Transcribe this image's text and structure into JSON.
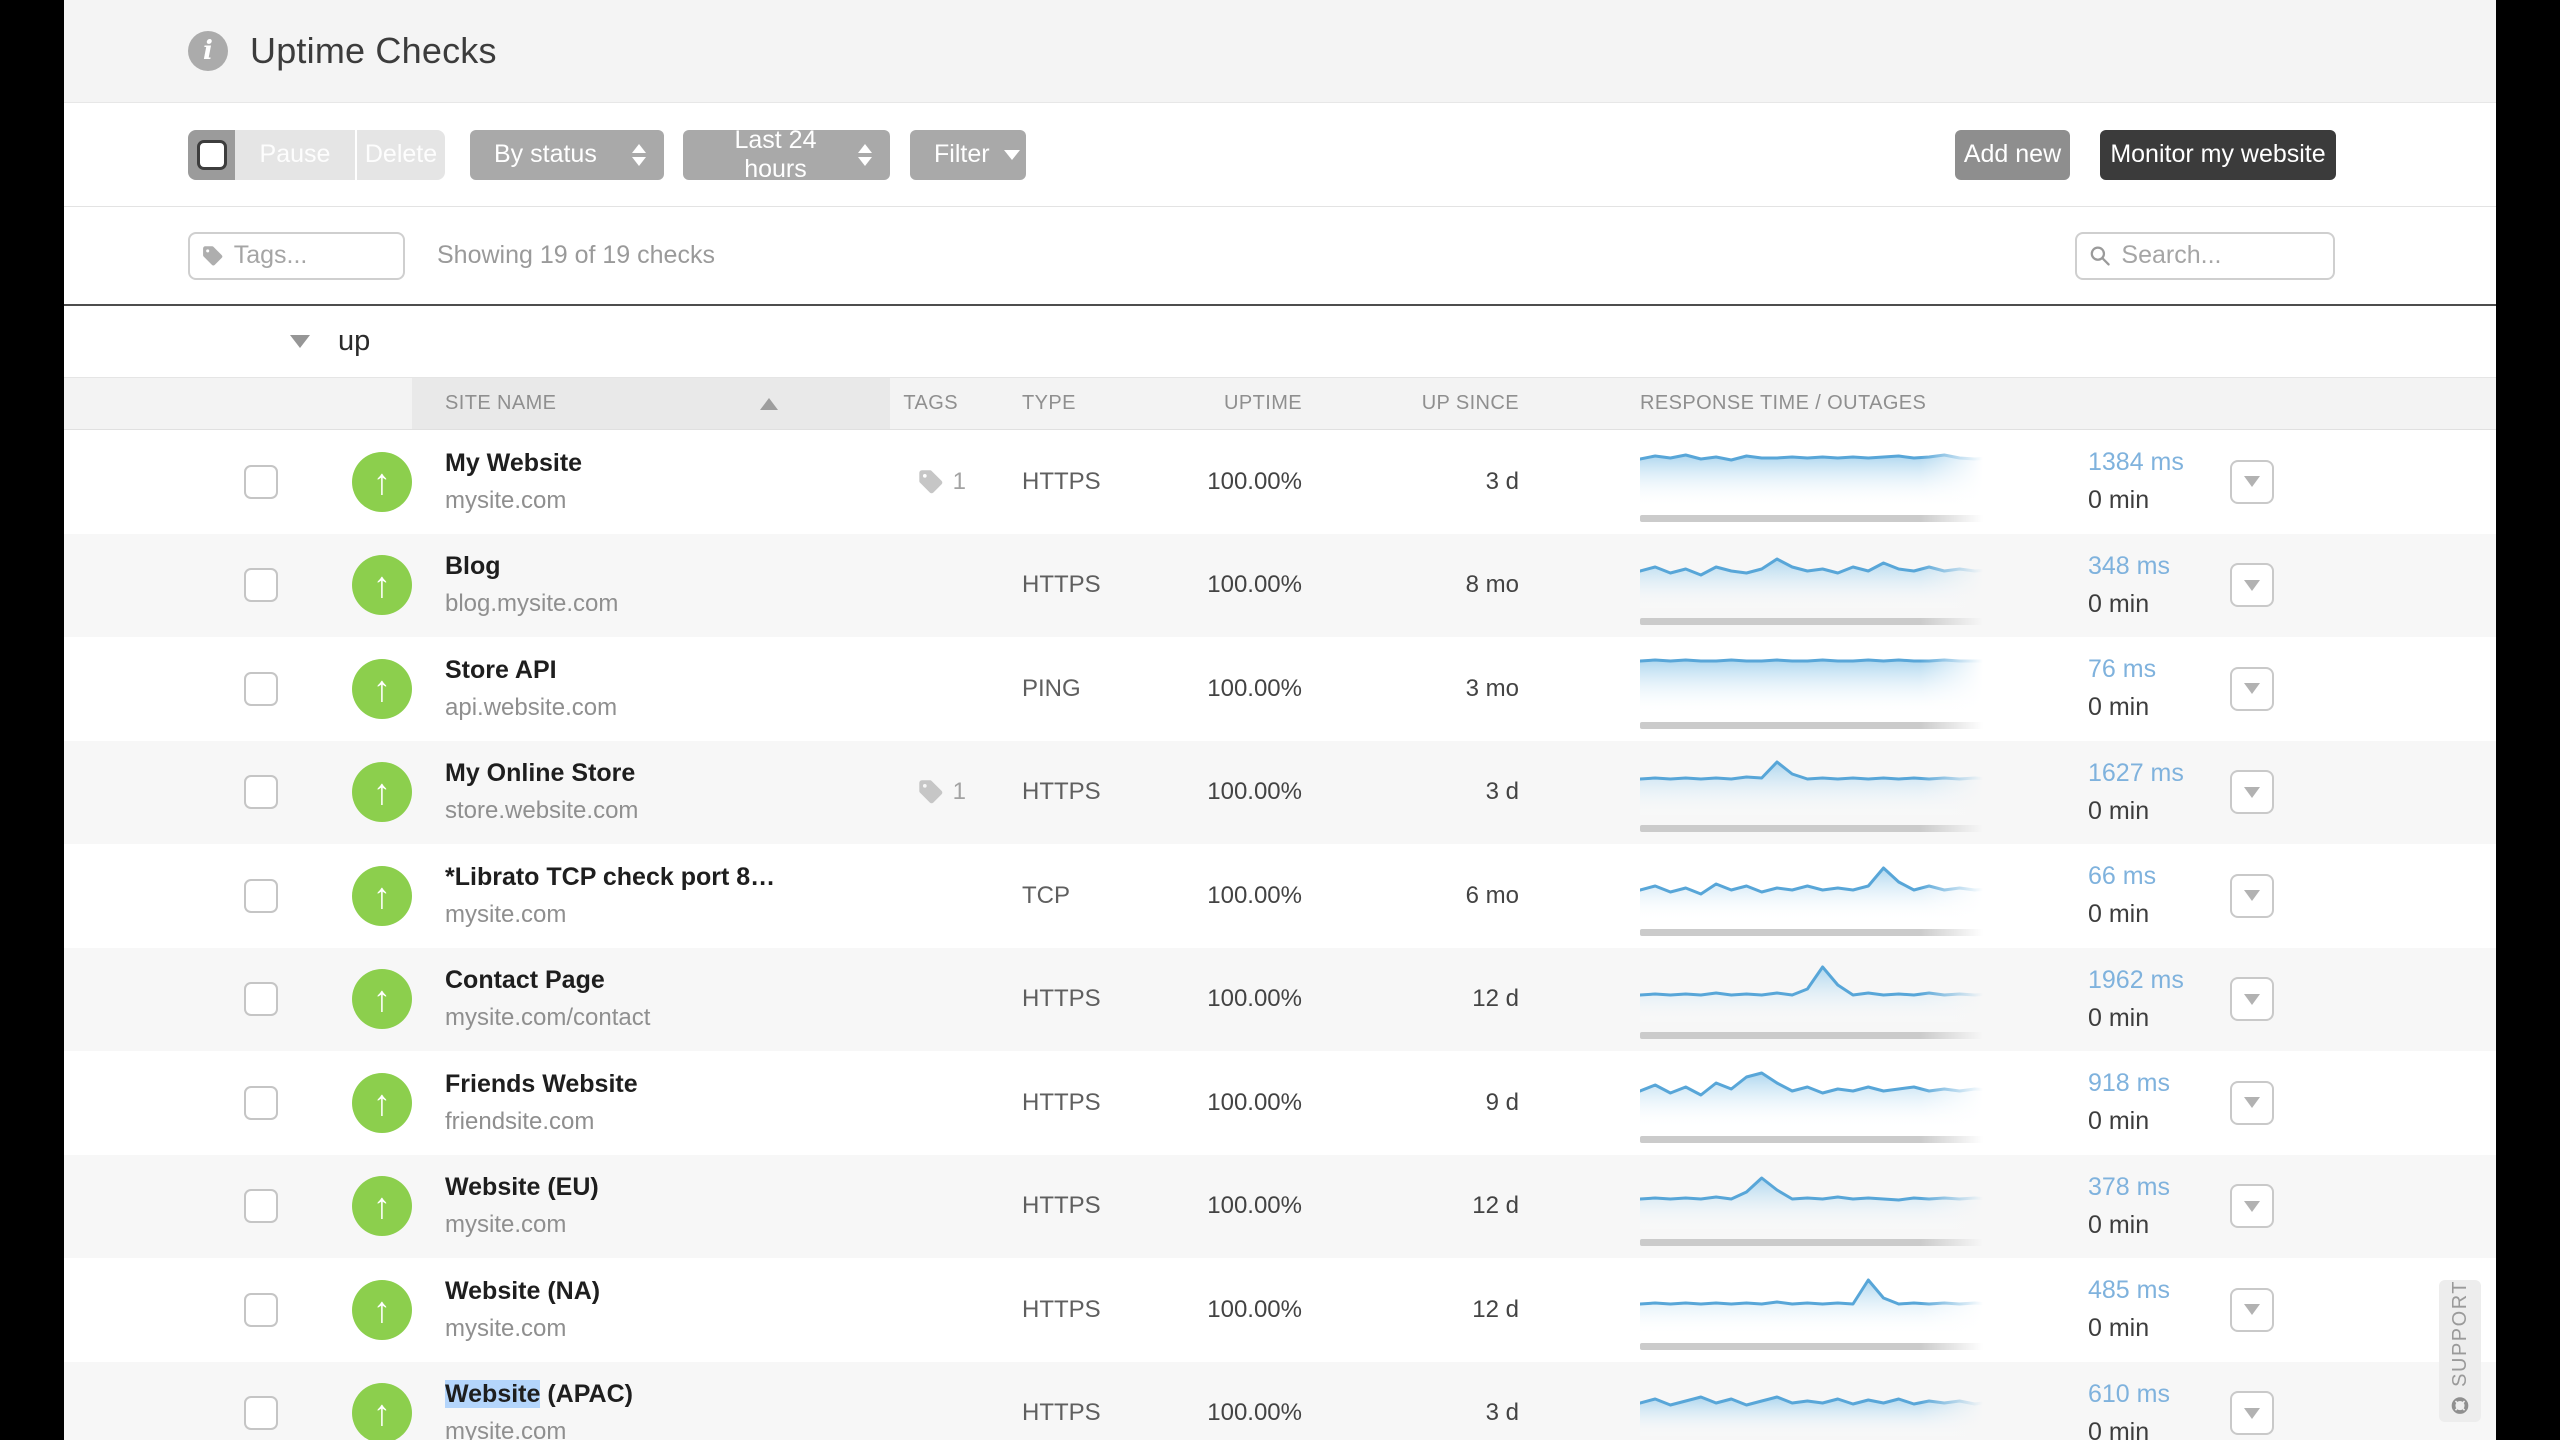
{
  "header": {
    "title": "Uptime Checks",
    "info_icon": "info-icon",
    "icon_glyph": "i"
  },
  "toolbar": {
    "pause_label": "Pause",
    "delete_label": "Delete",
    "status_filter": "By status",
    "time_range": "Last 24 hours",
    "filter_label": "Filter",
    "add_new_label": "Add new",
    "monitor_label": "Monitor my website"
  },
  "filter_bar": {
    "tags_placeholder": "Tags...",
    "showing_text": "Showing 19 of 19 checks",
    "search_placeholder": "Search..."
  },
  "group": {
    "label": "up",
    "state": "expanded"
  },
  "table": {
    "columns": [
      "SITE NAME",
      "TAGS",
      "TYPE",
      "UPTIME",
      "UP SINCE",
      "RESPONSE TIME / OUTAGES"
    ],
    "sorted_by": "SITE NAME",
    "sort_direction": "asc"
  },
  "colors": {
    "status_up_green": "#8ccf4d",
    "response_blue": "#7fb2dd",
    "spark_line": "#58a6d8",
    "dark_button": "#3b3b3b",
    "selection_highlight": "#b4d5fb"
  },
  "rows": [
    {
      "name": "My Website",
      "domain": "mysite.com",
      "tags": "1",
      "type": "HTTPS",
      "uptime": "100.00%",
      "up_since": "3 d",
      "response": "1384 ms",
      "outages": "0 min",
      "sparkline": [
        17,
        14,
        16,
        13,
        17,
        15,
        18,
        14,
        16,
        16,
        15,
        16,
        15,
        16,
        15,
        16,
        15,
        14,
        16,
        15,
        13,
        16,
        17,
        16
      ]
    },
    {
      "name": "Blog",
      "domain": "blog.mysite.com",
      "tags": null,
      "type": "HTTPS",
      "uptime": "100.00%",
      "up_since": "8 mo",
      "response": "348 ms",
      "outages": "0 min",
      "sparkline": [
        26,
        22,
        28,
        24,
        30,
        22,
        26,
        28,
        24,
        14,
        22,
        26,
        24,
        28,
        22,
        26,
        18,
        24,
        26,
        22,
        26,
        24,
        26,
        25
      ]
    },
    {
      "name": "Store API",
      "domain": "api.website.com",
      "tags": null,
      "type": "PING",
      "uptime": "100.00%",
      "up_since": "3 mo",
      "response": "76 ms",
      "outages": "0 min",
      "sparkline": [
        12,
        11,
        12,
        11,
        12,
        12,
        11,
        12,
        12,
        11,
        12,
        12,
        11,
        12,
        12,
        11,
        12,
        11,
        12,
        12,
        11,
        12,
        12,
        12
      ]
    },
    {
      "name": "My Online Store",
      "domain": "store.website.com",
      "tags": "1",
      "type": "HTTPS",
      "uptime": "100.00%",
      "up_since": "3 d",
      "response": "1627 ms",
      "outages": "0 min",
      "sparkline": [
        27,
        26,
        27,
        26,
        27,
        26,
        27,
        25,
        26,
        10,
        22,
        27,
        26,
        27,
        26,
        27,
        26,
        27,
        26,
        27,
        26,
        27,
        26,
        27
      ]
    },
    {
      "name": "*Librato TCP check port 8…",
      "domain": "mysite.com",
      "tags": null,
      "type": "TCP",
      "uptime": "100.00%",
      "up_since": "6 mo",
      "response": "66 ms",
      "outages": "0 min",
      "sparkline": [
        34,
        30,
        36,
        32,
        38,
        28,
        34,
        30,
        36,
        32,
        34,
        30,
        34,
        32,
        34,
        30,
        12,
        26,
        34,
        30,
        34,
        32,
        34,
        33
      ]
    },
    {
      "name": "Contact Page",
      "domain": "mysite.com/contact",
      "tags": null,
      "type": "HTTPS",
      "uptime": "100.00%",
      "up_since": "12 d",
      "response": "1962 ms",
      "outages": "0 min",
      "sparkline": [
        36,
        35,
        36,
        35,
        36,
        34,
        36,
        35,
        36,
        34,
        36,
        30,
        8,
        26,
        36,
        34,
        36,
        35,
        36,
        34,
        36,
        35,
        36,
        35
      ]
    },
    {
      "name": "Friends Website",
      "domain": "friendsite.com",
      "tags": null,
      "type": "HTTPS",
      "uptime": "100.00%",
      "up_since": "9 d",
      "response": "918 ms",
      "outages": "0 min",
      "sparkline": [
        28,
        22,
        30,
        24,
        32,
        20,
        26,
        14,
        10,
        20,
        28,
        24,
        30,
        26,
        28,
        24,
        28,
        26,
        24,
        28,
        26,
        28,
        26,
        27
      ]
    },
    {
      "name": "Website (EU)",
      "domain": "mysite.com",
      "tags": null,
      "type": "HTTPS",
      "uptime": "100.00%",
      "up_since": "12 d",
      "response": "378 ms",
      "outages": "0 min",
      "sparkline": [
        33,
        32,
        33,
        32,
        33,
        31,
        33,
        26,
        12,
        24,
        33,
        32,
        33,
        31,
        33,
        32,
        33,
        34,
        32,
        33,
        32,
        33,
        32,
        33
      ]
    },
    {
      "name": "Website (NA)",
      "domain": "mysite.com",
      "tags": null,
      "type": "HTTPS",
      "uptime": "100.00%",
      "up_since": "12 d",
      "response": "485 ms",
      "outages": "0 min",
      "sparkline": [
        34,
        33,
        34,
        33,
        34,
        33,
        34,
        33,
        34,
        32,
        34,
        33,
        34,
        33,
        34,
        10,
        28,
        34,
        33,
        34,
        33,
        34,
        33,
        34
      ]
    },
    {
      "name": "Website (APAC)",
      "selection": "Website",
      "domain": "mysite.com",
      "tags": null,
      "type": "HTTPS",
      "uptime": "100.00%",
      "up_since": "3 d",
      "response": "610 ms",
      "outages": "0 min",
      "sparkline": [
        30,
        26,
        32,
        28,
        24,
        30,
        26,
        32,
        28,
        24,
        30,
        28,
        30,
        26,
        31,
        27,
        30,
        26,
        31,
        28,
        30,
        28,
        31,
        29
      ]
    }
  ],
  "support": {
    "label": "SUPPORT"
  }
}
